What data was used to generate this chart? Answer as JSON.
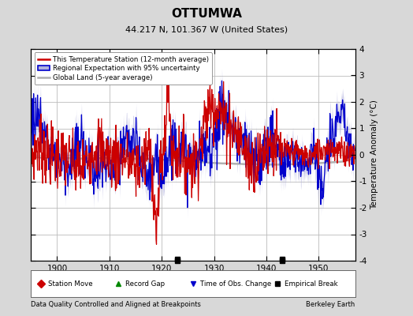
{
  "title": "OTTUMWA",
  "subtitle": "44.217 N, 101.367 W (United States)",
  "ylabel": "Temperature Anomaly (°C)",
  "xlabel_note": "Data Quality Controlled and Aligned at Breakpoints",
  "credit": "Berkeley Earth",
  "xlim": [
    1895,
    1957
  ],
  "ylim": [
    -4,
    4
  ],
  "yticks": [
    -4,
    -3,
    -2,
    -1,
    0,
    1,
    2,
    3,
    4
  ],
  "xticks": [
    1900,
    1910,
    1920,
    1930,
    1940,
    1950
  ],
  "bg_color": "#d8d8d8",
  "plot_bg_color": "#ffffff",
  "grid_color": "#bbbbbb",
  "empirical_break_years": [
    1923,
    1943
  ],
  "red_line_color": "#cc0000",
  "blue_line_color": "#0000cc",
  "blue_fill_color": "#b0b0dd",
  "gray_line_color": "#b0b0b0",
  "legend_items": [
    "This Temperature Station (12-month average)",
    "Regional Expectation with 95% uncertainty",
    "Global Land (5-year average)"
  ]
}
